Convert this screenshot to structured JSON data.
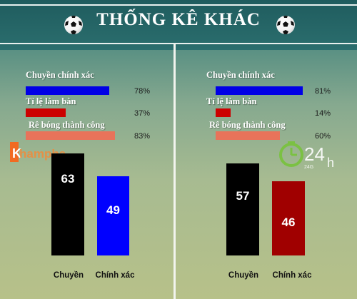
{
  "header": {
    "title": "THỐNG KÊ KHÁC"
  },
  "colors": {
    "pass": "#0000e6",
    "conversion": "#cc0000",
    "dribble": "#e8735a",
    "passes_bar": "#000000",
    "accurate_left": "#0000ff",
    "accurate_right": "#a00000"
  },
  "chart_data": [
    {
      "type": "bar",
      "orientation": "horizontal",
      "side": "left",
      "categories": [
        "Chuyền chính xác",
        "Tỉ lệ làm bàn",
        "Rê bóng thành công"
      ],
      "values": [
        78,
        37,
        83
      ],
      "value_labels": [
        "78%",
        "37%",
        "83%"
      ],
      "xlim": [
        0,
        100
      ]
    },
    {
      "type": "bar",
      "side": "left",
      "categories": [
        "Chuyền",
        "Chính xác"
      ],
      "values": [
        63,
        49
      ],
      "value_labels": [
        "63",
        "49"
      ]
    },
    {
      "type": "bar",
      "orientation": "horizontal",
      "side": "right",
      "categories": [
        "Chuyền chính xác",
        "Tỉ lệ làm bàn",
        "Rê bóng thành công"
      ],
      "values": [
        81,
        14,
        60
      ],
      "value_labels": [
        "81%",
        "14%",
        "60%"
      ],
      "xlim": [
        0,
        100
      ]
    },
    {
      "type": "bar",
      "side": "right",
      "categories": [
        "Chuyền",
        "Chính xác"
      ],
      "values": [
        57,
        46
      ],
      "value_labels": [
        "57",
        "46"
      ]
    }
  ],
  "watermarks": {
    "left_logo": "Khampha.vn",
    "right_logo": "24h",
    "right_logo_small": "24G"
  }
}
